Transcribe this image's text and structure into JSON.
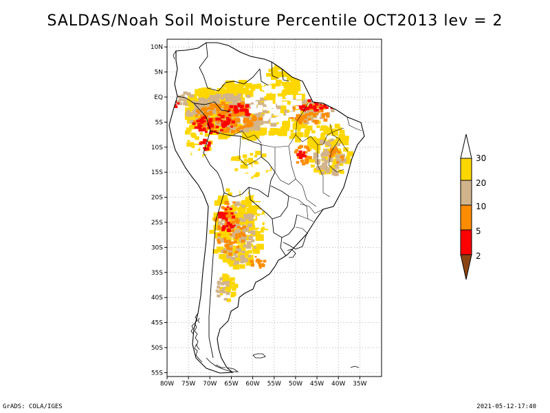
{
  "title": "SALDAS/Noah Soil Moisture Percentile OCT2013 lev = 2",
  "footer_left": "GrADS: COLA/IGES",
  "footer_right": "2021-05-12-17:40",
  "map": {
    "lon_range": [
      -80,
      -30
    ],
    "lat_range": [
      -56,
      12
    ],
    "y_ticks": [
      "10N",
      "5N",
      "EQ",
      "5S",
      "10S",
      "15S",
      "20S",
      "25S",
      "30S",
      "35S",
      "40S",
      "45S",
      "50S",
      "55S"
    ],
    "x_ticks": [
      "80W",
      "75W",
      "70W",
      "65W",
      "60W",
      "55W",
      "50W",
      "45W",
      "40W",
      "35W"
    ],
    "grid": "dotted"
  },
  "legend": {
    "labels": [
      "30",
      "20",
      "10",
      "5",
      "2"
    ],
    "colors": {
      "above_30": "#ffffff",
      "20_30": "#ffd700",
      "10_20": "#d2b48c",
      "5_10": "#ff8c00",
      "2_5": "#ff0000",
      "below_2": "#8b4513"
    }
  },
  "colors": {
    "land": "#ffffff",
    "coast": "#000000",
    "border": "#000000",
    "grid": "#999999"
  }
}
